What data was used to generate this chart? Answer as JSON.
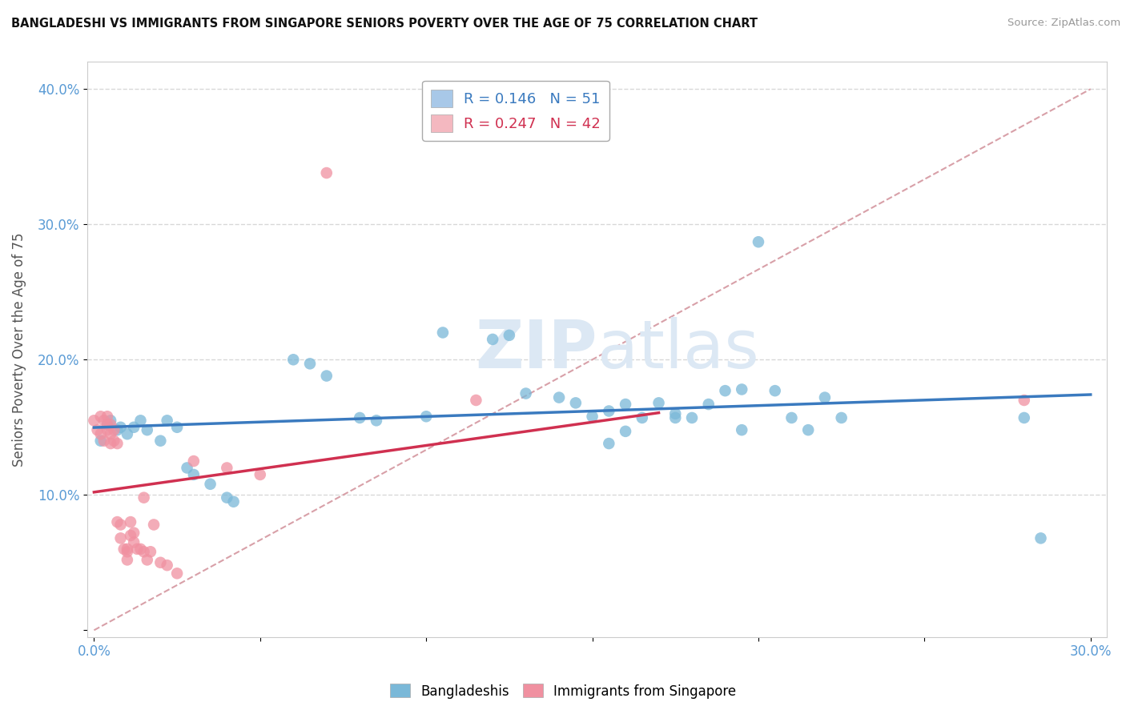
{
  "title": "BANGLADESHI VS IMMIGRANTS FROM SINGAPORE SENIORS POVERTY OVER THE AGE OF 75 CORRELATION CHART",
  "source": "Source: ZipAtlas.com",
  "ylabel": "Seniors Poverty Over the Age of 75",
  "xlabel": "",
  "xlim": [
    -0.002,
    0.305
  ],
  "ylim": [
    -0.005,
    0.42
  ],
  "x_ticks": [
    0.0,
    0.3
  ],
  "x_tick_labels": [
    "0.0%",
    "30.0%"
  ],
  "y_ticks": [
    0.1,
    0.2,
    0.3,
    0.4
  ],
  "y_tick_labels": [
    "10.0%",
    "20.0%",
    "30.0%",
    "40.0%"
  ],
  "legend1_label": "R = 0.146   N = 51",
  "legend2_label": "R = 0.247   N = 42",
  "legend1_color": "#a8c8e8",
  "legend2_color": "#f4b8c0",
  "blue_color": "#7ab8d8",
  "pink_color": "#f090a0",
  "blue_line_color": "#3a7abf",
  "pink_line_color": "#d03050",
  "diag_line_color": "#d8a0a8",
  "watermark_color": "#dce8f4",
  "blue_scatter_x": [
    0.002,
    0.004,
    0.005,
    0.007,
    0.008,
    0.01,
    0.012,
    0.014,
    0.016,
    0.02,
    0.022,
    0.025,
    0.028,
    0.03,
    0.035,
    0.04,
    0.042,
    0.06,
    0.065,
    0.07,
    0.08,
    0.085,
    0.1,
    0.105,
    0.12,
    0.125,
    0.13,
    0.14,
    0.145,
    0.15,
    0.155,
    0.155,
    0.16,
    0.16,
    0.165,
    0.17,
    0.175,
    0.175,
    0.18,
    0.185,
    0.19,
    0.195,
    0.195,
    0.2,
    0.205,
    0.21,
    0.215,
    0.22,
    0.225,
    0.28,
    0.285
  ],
  "blue_scatter_y": [
    0.14,
    0.152,
    0.155,
    0.148,
    0.15,
    0.145,
    0.15,
    0.155,
    0.148,
    0.14,
    0.155,
    0.15,
    0.12,
    0.115,
    0.108,
    0.098,
    0.095,
    0.2,
    0.197,
    0.188,
    0.157,
    0.155,
    0.158,
    0.22,
    0.215,
    0.218,
    0.175,
    0.172,
    0.168,
    0.158,
    0.162,
    0.138,
    0.147,
    0.167,
    0.157,
    0.168,
    0.16,
    0.157,
    0.157,
    0.167,
    0.177,
    0.148,
    0.178,
    0.287,
    0.177,
    0.157,
    0.148,
    0.172,
    0.157,
    0.157,
    0.068
  ],
  "pink_scatter_x": [
    0.0,
    0.001,
    0.002,
    0.002,
    0.003,
    0.003,
    0.004,
    0.004,
    0.004,
    0.005,
    0.005,
    0.005,
    0.006,
    0.006,
    0.007,
    0.007,
    0.008,
    0.008,
    0.009,
    0.01,
    0.01,
    0.01,
    0.011,
    0.011,
    0.012,
    0.012,
    0.013,
    0.014,
    0.015,
    0.015,
    0.016,
    0.017,
    0.018,
    0.02,
    0.022,
    0.025,
    0.03,
    0.04,
    0.05,
    0.07,
    0.115,
    0.28
  ],
  "pink_scatter_y": [
    0.155,
    0.148,
    0.158,
    0.145,
    0.155,
    0.14,
    0.148,
    0.152,
    0.158,
    0.152,
    0.145,
    0.138,
    0.148,
    0.14,
    0.138,
    0.08,
    0.078,
    0.068,
    0.06,
    0.06,
    0.058,
    0.052,
    0.08,
    0.07,
    0.072,
    0.065,
    0.06,
    0.06,
    0.098,
    0.058,
    0.052,
    0.058,
    0.078,
    0.05,
    0.048,
    0.042,
    0.125,
    0.12,
    0.115,
    0.338,
    0.17,
    0.17
  ]
}
